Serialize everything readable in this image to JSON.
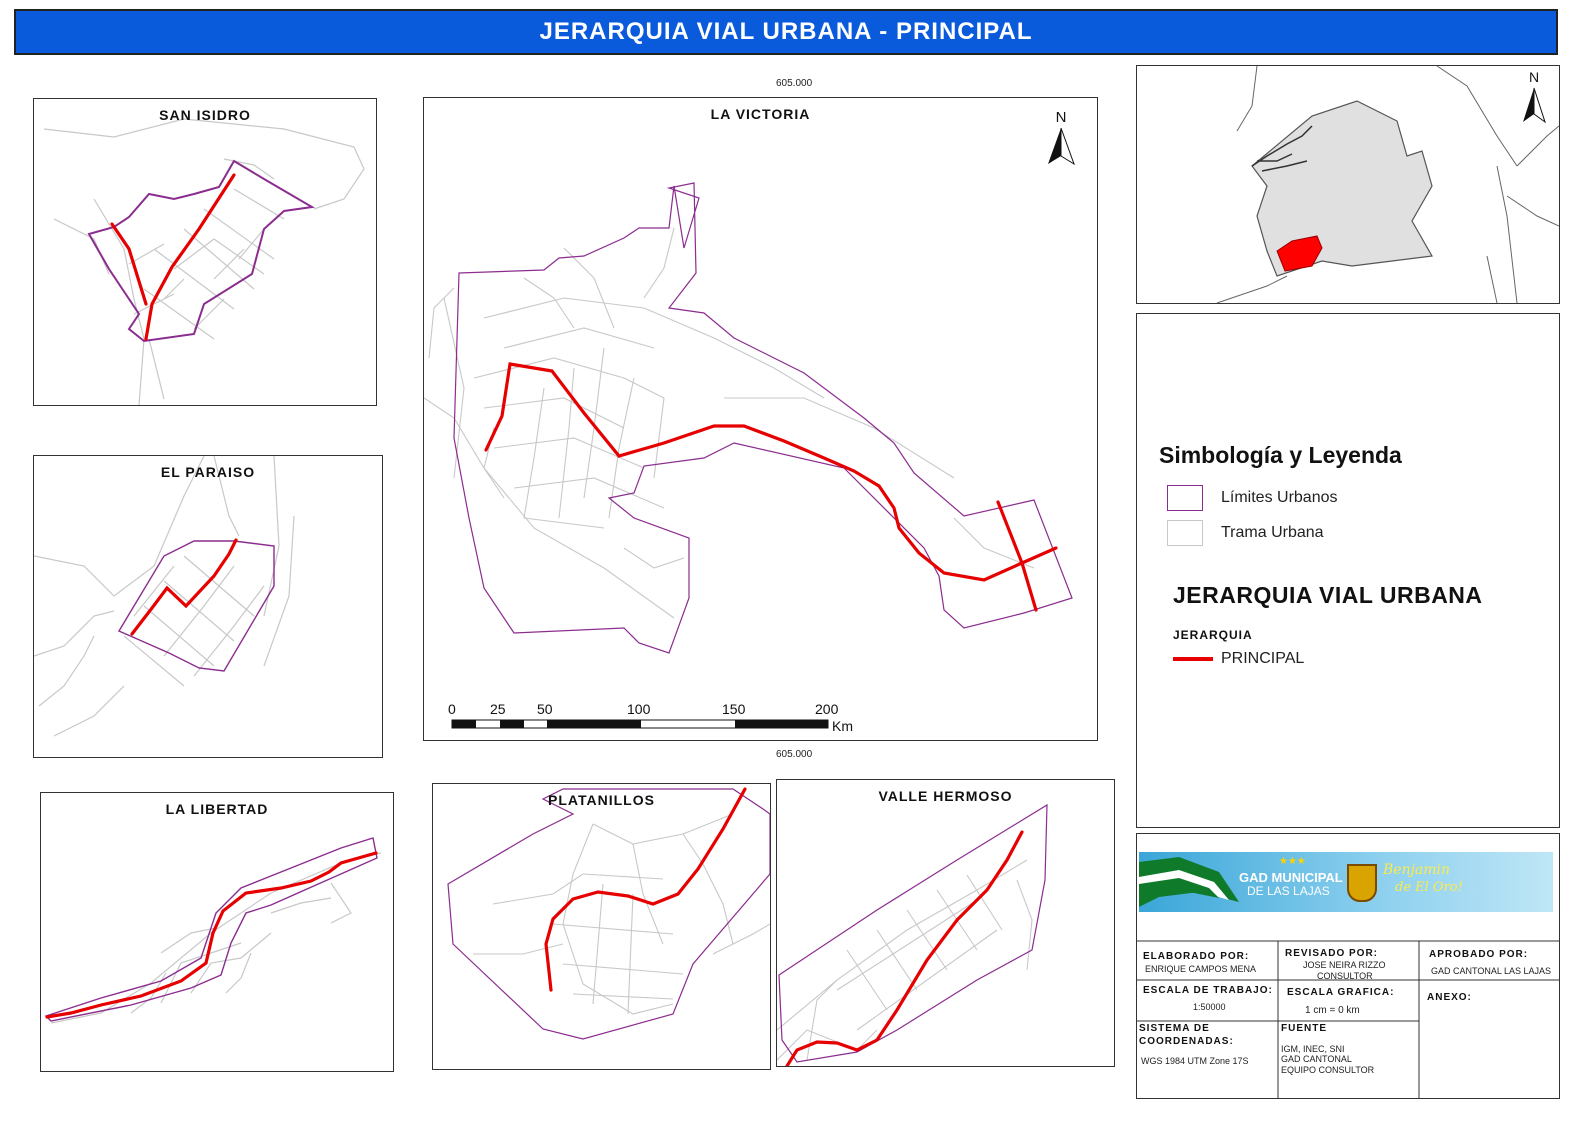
{
  "title": "JERARQUIA VIAL URBANA - PRINCIPAL",
  "colors": {
    "title_bar": "#0a5bdc",
    "road_principal": "#e60000",
    "urban_limit": "#8b2c8f",
    "urban_grid": "#c8c8c8",
    "canton_fill": "#e0e0e0"
  },
  "panels": {
    "san_isidro": "SAN ISIDRO",
    "la_victoria": "LA VICTORIA",
    "el_paraiso": "EL PARAISO",
    "la_libertad": "LA LIBERTAD",
    "platanillos": "PLATANILLOS",
    "valle_hermoso": "VALLE HERMOSO"
  },
  "north_label": "N",
  "coord_top": "605.000",
  "coord_bottom": "605.000",
  "scalebar": {
    "ticks": [
      "0",
      "25",
      "50",
      "100",
      "150",
      "200"
    ],
    "unit": "Km"
  },
  "legend": {
    "title": "Simbología y Leyenda",
    "items": [
      "Límites Urbanos",
      "Trama Urbana"
    ],
    "section_title": "JERARQUIA VIAL URBANA",
    "subtitle": "JERARQUIA",
    "road_label": "PRINCIPAL"
  },
  "logo": {
    "stars": "★★★",
    "line1": "GAD MUNICIPAL",
    "line2": "DE LAS LAJAS",
    "slogan1": "Benjamin",
    "slogan2": "de El Oro!"
  },
  "title_block": {
    "elaborado_label": "ELABORADO POR:",
    "elaborado_value": "ENRIQUE CAMPOS MENA",
    "revisado_label": "REVISADO POR:",
    "revisado_value1": "JOSE NEIRA RIZZO",
    "revisado_value2": "CONSULTOR",
    "aprobado_label": "APROBADO POR:",
    "aprobado_value": "GAD CANTONAL LAS LAJAS",
    "escala_trabajo_label": "ESCALA DE TRABAJO:",
    "escala_trabajo_value": "1:50000",
    "escala_grafica_label": "ESCALA GRAFICA:",
    "escala_grafica_value": "1 cm = 0 km",
    "anexo_label": "ANEXO:",
    "sistema_label1": "SISTEMA DE",
    "sistema_label2": "COORDENADAS:",
    "sistema_value": "WGS 1984 UTM Zone 17S",
    "fuente_label": "FUENTE",
    "fuente_value1": "IGM, INEC, SNI",
    "fuente_value2": "GAD CANTONAL",
    "fuente_value3": "EQUIPO CONSULTOR"
  }
}
